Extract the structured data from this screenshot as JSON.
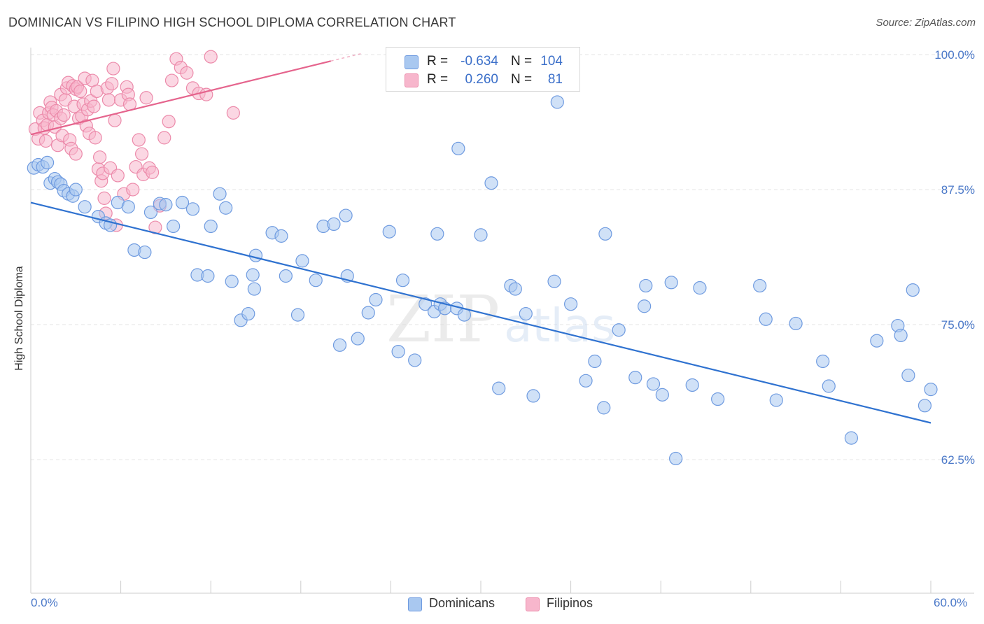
{
  "title": "DOMINICAN VS FILIPINO HIGH SCHOOL DIPLOMA CORRELATION CHART",
  "source": "Source: ZipAtlas.com",
  "watermark": {
    "zip": "ZIP",
    "atlas": "atlas"
  },
  "colors": {
    "blue_fill": "#a9c8f0",
    "blue_stroke": "#6f9be0",
    "blue_line": "#2f72d0",
    "pink_fill": "#f7b6cc",
    "pink_stroke": "#ec8aaa",
    "pink_line": "#e5648d",
    "tick_text": "#4a78c8",
    "grid": "#e6e6e6"
  },
  "stats": {
    "rows": [
      {
        "r_label": "R =",
        "r_value": "-0.634",
        "n_label": "N =",
        "n_value": "104",
        "series": "blue"
      },
      {
        "r_label": "R =",
        "r_value": "0.260",
        "n_label": "N =",
        "n_value": "81",
        "series": "pink"
      }
    ]
  },
  "legend": {
    "items": [
      {
        "label": "Dominicans",
        "series": "blue"
      },
      {
        "label": "Filipinos",
        "series": "pink"
      }
    ]
  },
  "chart_data": {
    "type": "scatter",
    "title": "DOMINICAN VS FILIPINO HIGH SCHOOL DIPLOMA CORRELATION CHART",
    "xlabel": "",
    "ylabel": "High School Diploma",
    "xlim": [
      0,
      60
    ],
    "ylim": [
      52.5,
      101
    ],
    "x_tick_labels": [
      "0.0%",
      "60.0%"
    ],
    "y_ticks": [
      100,
      87.5,
      75,
      62.5
    ],
    "y_tick_labels": [
      "100.0%",
      "87.5%",
      "75.0%",
      "62.5%"
    ],
    "grid": true,
    "legend_position": "bottom-center",
    "series": [
      {
        "name": "Dominicans",
        "color": "blue",
        "trend": {
          "x": [
            0,
            60
          ],
          "y": [
            86.3,
            65.9
          ]
        },
        "points": [
          [
            0.2,
            89.5
          ],
          [
            0.5,
            89.8
          ],
          [
            0.8,
            89.6
          ],
          [
            1.1,
            90.0
          ],
          [
            1.3,
            88.1
          ],
          [
            1.6,
            88.5
          ],
          [
            1.8,
            88.2
          ],
          [
            2.0,
            88.0
          ],
          [
            2.2,
            87.4
          ],
          [
            2.5,
            87.1
          ],
          [
            2.8,
            86.9
          ],
          [
            3.0,
            87.5
          ],
          [
            3.6,
            85.9
          ],
          [
            4.5,
            85.0
          ],
          [
            5.0,
            84.4
          ],
          [
            5.3,
            84.2
          ],
          [
            5.8,
            86.3
          ],
          [
            6.5,
            85.9
          ],
          [
            6.9,
            81.9
          ],
          [
            7.6,
            81.7
          ],
          [
            8.0,
            85.4
          ],
          [
            8.6,
            86.2
          ],
          [
            9.0,
            86.1
          ],
          [
            9.5,
            84.1
          ],
          [
            10.1,
            86.3
          ],
          [
            10.8,
            85.7
          ],
          [
            11.1,
            79.6
          ],
          [
            11.8,
            79.5
          ],
          [
            12.0,
            84.1
          ],
          [
            12.6,
            87.1
          ],
          [
            13.0,
            85.8
          ],
          [
            13.4,
            79.0
          ],
          [
            14.0,
            75.4
          ],
          [
            14.5,
            76.0
          ],
          [
            14.8,
            79.6
          ],
          [
            14.9,
            78.3
          ],
          [
            15.0,
            81.4
          ],
          [
            16.1,
            83.5
          ],
          [
            16.7,
            83.2
          ],
          [
            17.0,
            79.5
          ],
          [
            17.8,
            75.9
          ],
          [
            18.1,
            80.9
          ],
          [
            19.0,
            79.1
          ],
          [
            19.5,
            84.1
          ],
          [
            20.2,
            84.3
          ],
          [
            20.6,
            73.1
          ],
          [
            21.0,
            85.1
          ],
          [
            21.1,
            79.5
          ],
          [
            21.8,
            73.7
          ],
          [
            22.5,
            76.1
          ],
          [
            23.0,
            77.3
          ],
          [
            23.9,
            83.6
          ],
          [
            24.5,
            72.5
          ],
          [
            24.8,
            79.1
          ],
          [
            25.0,
            99.6
          ],
          [
            25.6,
            71.7
          ],
          [
            26.3,
            76.9
          ],
          [
            26.9,
            76.2
          ],
          [
            27.1,
            83.4
          ],
          [
            27.3,
            76.9
          ],
          [
            27.6,
            76.5
          ],
          [
            28.4,
            76.5
          ],
          [
            28.5,
            91.3
          ],
          [
            28.9,
            75.9
          ],
          [
            29.9,
            99.6
          ],
          [
            30.0,
            83.3
          ],
          [
            30.7,
            88.1
          ],
          [
            31.2,
            69.1
          ],
          [
            32.0,
            78.6
          ],
          [
            32.3,
            78.3
          ],
          [
            33.0,
            76.0
          ],
          [
            33.5,
            68.4
          ],
          [
            34.9,
            79.0
          ],
          [
            35.1,
            95.6
          ],
          [
            36.0,
            76.9
          ],
          [
            37.0,
            69.8
          ],
          [
            37.6,
            71.6
          ],
          [
            38.2,
            67.3
          ],
          [
            38.3,
            83.4
          ],
          [
            39.2,
            74.5
          ],
          [
            40.3,
            70.1
          ],
          [
            40.9,
            76.7
          ],
          [
            41.0,
            78.6
          ],
          [
            41.5,
            69.5
          ],
          [
            42.1,
            68.5
          ],
          [
            42.7,
            78.9
          ],
          [
            43.0,
            62.6
          ],
          [
            44.1,
            69.4
          ],
          [
            44.6,
            78.4
          ],
          [
            45.8,
            68.1
          ],
          [
            48.6,
            78.6
          ],
          [
            49.0,
            75.5
          ],
          [
            49.7,
            68.0
          ],
          [
            51.0,
            75.1
          ],
          [
            52.8,
            71.6
          ],
          [
            53.2,
            69.3
          ],
          [
            54.7,
            64.5
          ],
          [
            56.4,
            73.5
          ],
          [
            57.8,
            74.9
          ],
          [
            58.0,
            74.0
          ],
          [
            58.5,
            70.3
          ],
          [
            58.8,
            78.2
          ],
          [
            59.6,
            67.5
          ],
          [
            60.0,
            69.0
          ]
        ]
      },
      {
        "name": "Filipinos",
        "color": "pink",
        "trend": {
          "x": [
            0,
            20
          ],
          "y": [
            92.6,
            99.4
          ]
        },
        "points": [
          [
            0.3,
            93.1
          ],
          [
            0.5,
            92.2
          ],
          [
            0.6,
            94.6
          ],
          [
            0.8,
            93.9
          ],
          [
            0.9,
            93.2
          ],
          [
            1.0,
            92.0
          ],
          [
            1.1,
            93.5
          ],
          [
            1.2,
            94.6
          ],
          [
            1.3,
            95.6
          ],
          [
            1.4,
            95.1
          ],
          [
            1.5,
            94.4
          ],
          [
            1.6,
            93.3
          ],
          [
            1.7,
            94.8
          ],
          [
            1.8,
            91.6
          ],
          [
            2.0,
            94.1
          ],
          [
            2.0,
            96.3
          ],
          [
            2.1,
            92.5
          ],
          [
            2.2,
            94.4
          ],
          [
            2.3,
            95.8
          ],
          [
            2.4,
            96.9
          ],
          [
            2.5,
            97.4
          ],
          [
            2.6,
            92.1
          ],
          [
            2.7,
            91.3
          ],
          [
            2.8,
            97.1
          ],
          [
            2.9,
            95.2
          ],
          [
            3.0,
            96.8
          ],
          [
            3.0,
            90.8
          ],
          [
            3.1,
            97.0
          ],
          [
            3.2,
            94.1
          ],
          [
            3.3,
            96.6
          ],
          [
            3.4,
            94.3
          ],
          [
            3.5,
            95.4
          ],
          [
            3.6,
            97.8
          ],
          [
            3.7,
            93.4
          ],
          [
            3.8,
            94.9
          ],
          [
            3.9,
            92.7
          ],
          [
            4.0,
            95.7
          ],
          [
            4.1,
            97.6
          ],
          [
            4.2,
            95.2
          ],
          [
            4.3,
            92.3
          ],
          [
            4.4,
            96.6
          ],
          [
            4.5,
            89.4
          ],
          [
            4.6,
            90.5
          ],
          [
            4.7,
            88.3
          ],
          [
            4.8,
            89.0
          ],
          [
            4.9,
            86.7
          ],
          [
            5.0,
            85.3
          ],
          [
            5.1,
            96.9
          ],
          [
            5.2,
            95.8
          ],
          [
            5.3,
            89.5
          ],
          [
            5.4,
            97.3
          ],
          [
            5.5,
            98.7
          ],
          [
            5.6,
            93.9
          ],
          [
            5.7,
            84.2
          ],
          [
            5.8,
            88.8
          ],
          [
            6.0,
            95.8
          ],
          [
            6.2,
            87.1
          ],
          [
            6.4,
            97.0
          ],
          [
            6.5,
            96.3
          ],
          [
            6.6,
            95.4
          ],
          [
            6.8,
            87.5
          ],
          [
            7.0,
            89.6
          ],
          [
            7.2,
            92.1
          ],
          [
            7.4,
            90.8
          ],
          [
            7.5,
            88.9
          ],
          [
            7.7,
            96.0
          ],
          [
            7.9,
            89.5
          ],
          [
            8.1,
            89.1
          ],
          [
            8.3,
            84.0
          ],
          [
            8.6,
            86.0
          ],
          [
            8.9,
            92.3
          ],
          [
            9.2,
            93.8
          ],
          [
            9.4,
            97.6
          ],
          [
            9.7,
            99.6
          ],
          [
            10.0,
            98.8
          ],
          [
            10.4,
            98.3
          ],
          [
            10.8,
            96.9
          ],
          [
            11.2,
            96.4
          ],
          [
            11.7,
            96.3
          ],
          [
            12.0,
            99.8
          ],
          [
            13.5,
            94.6
          ]
        ]
      }
    ]
  }
}
